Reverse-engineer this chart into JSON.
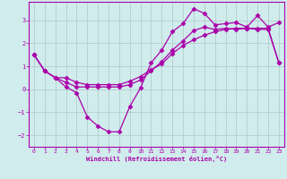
{
  "xlabel": "Windchill (Refroidissement éolien,°C)",
  "bg_color": "#d0ecec",
  "line_color": "#aa00aa",
  "grid_color": "#b0c8c8",
  "hours": [
    0,
    1,
    2,
    3,
    4,
    5,
    6,
    7,
    8,
    9,
    10,
    11,
    12,
    13,
    14,
    15,
    16,
    17,
    18,
    19,
    20,
    21,
    22,
    23
  ],
  "line1": [
    1.5,
    0.8,
    0.5,
    0.1,
    -0.15,
    -1.2,
    -1.6,
    -1.85,
    -1.85,
    -0.75,
    0.05,
    1.15,
    1.7,
    2.5,
    2.85,
    3.5,
    3.3,
    2.8,
    2.85,
    2.9,
    2.7,
    3.2,
    2.7,
    2.9
  ],
  "line2": [
    1.5,
    0.8,
    0.5,
    0.5,
    0.3,
    0.2,
    0.2,
    0.2,
    0.2,
    0.35,
    0.55,
    0.85,
    1.1,
    1.55,
    1.9,
    2.15,
    2.35,
    2.5,
    2.6,
    2.65,
    2.65,
    2.65,
    2.65,
    1.15
  ],
  "line3": [
    1.5,
    0.8,
    0.5,
    0.3,
    0.1,
    0.1,
    0.1,
    0.1,
    0.1,
    0.2,
    0.4,
    0.8,
    1.2,
    1.7,
    2.1,
    2.55,
    2.7,
    2.6,
    2.65,
    2.6,
    2.65,
    2.6,
    2.6,
    1.15
  ],
  "ylim": [
    -2.5,
    3.8
  ],
  "xlim": [
    -0.5,
    23.5
  ],
  "yticks": [
    -2,
    -1,
    0,
    1,
    2,
    3
  ],
  "xticks": [
    0,
    1,
    2,
    3,
    4,
    5,
    6,
    7,
    8,
    9,
    10,
    11,
    12,
    13,
    14,
    15,
    16,
    17,
    18,
    19,
    20,
    21,
    22,
    23
  ],
  "markersize": 2.5,
  "linewidth": 0.9
}
